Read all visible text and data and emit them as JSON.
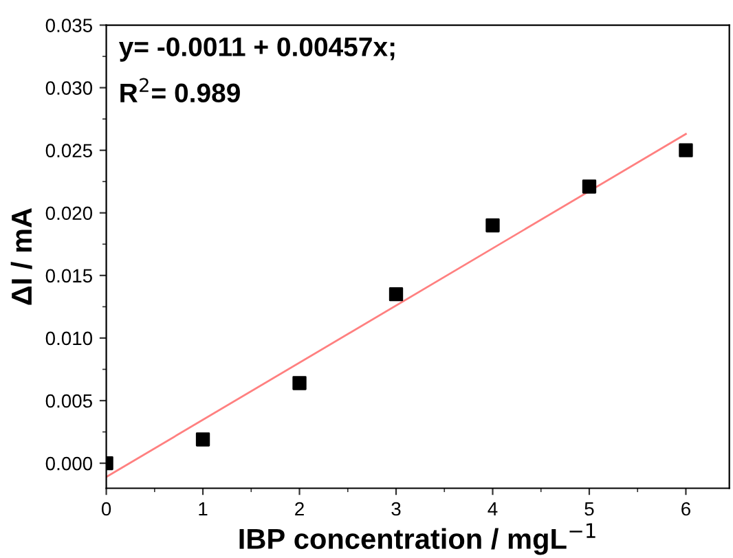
{
  "chart_data": {
    "type": "scatter",
    "xlabel": "IBP concentration / mgL$^{−1}$",
    "ylabel": "ΔI / mA",
    "annotations": [
      "y= -0.0011 + 0.00457x;",
      "R$^{2}$= 0.989"
    ],
    "x": [
      0,
      1,
      2,
      3,
      4,
      5,
      6
    ],
    "series": [
      {
        "color": "#000000",
        "marker": "square",
        "values": [
          0,
          0.0019,
          0.0064,
          0.0135,
          0.019,
          0.0221,
          0.025
        ]
      },
      {
        "type": "line",
        "color": "#ff8080",
        "x": [
          0,
          6
        ],
        "values": [
          -0.0011,
          0.0263
        ]
      }
    ],
    "xlim": [
      0,
      6.45
    ],
    "xticks": [
      0,
      1,
      2,
      3,
      4,
      5,
      6
    ],
    "ylim": [
      -0.002,
      0.035
    ],
    "yticks": [
      {
        "value": 0,
        "label": "0.000"
      },
      {
        "value": 0.005,
        "label": "0.005"
      },
      {
        "value": 0.01,
        "label": "0.010"
      },
      {
        "value": 0.015,
        "label": "0.015"
      },
      {
        "value": 0.02,
        "label": "0.020"
      },
      {
        "value": 0.025,
        "label": "0.025"
      },
      {
        "value": 0.03,
        "label": "0.030"
      },
      {
        "value": 0.035,
        "label": "0.035"
      }
    ],
    "grid": false,
    "legend": false
  }
}
